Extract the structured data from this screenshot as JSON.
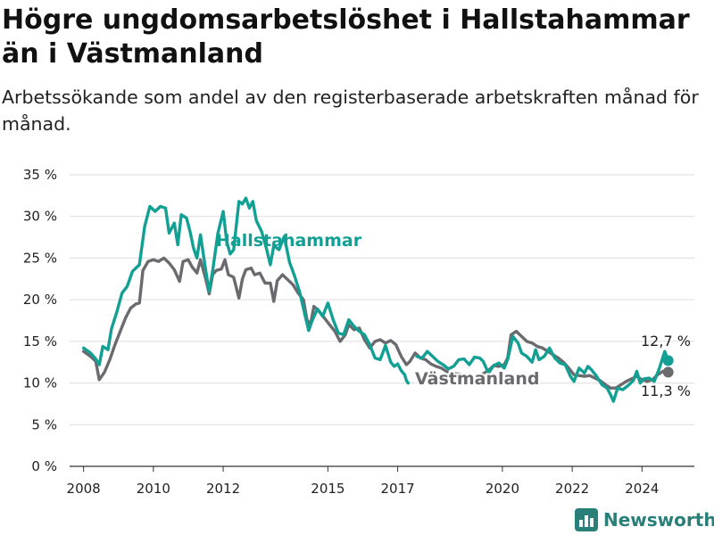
{
  "title": "Högre ungdomsarbetslöshet i Hallstahammar än i Västmanland",
  "subtitle": "Arbetssökande som andel av den registerbaserade arbetskraften månad för månad.",
  "brand": "Newsworthy",
  "colors": {
    "hallstahammar": "#12a094",
    "vastmanland": "#6b6b6f",
    "grid": "#dddddd",
    "text": "#222222"
  },
  "chart_data": {
    "type": "line",
    "ylim": [
      0,
      35
    ],
    "y_ticks": [
      0,
      5,
      10,
      15,
      20,
      25,
      30,
      35
    ],
    "y_tick_labels": [
      "0 %",
      "5 %",
      "10 %",
      "15 %",
      "20 %",
      "25 %",
      "30 %",
      "35 %"
    ],
    "x_tick_values": [
      2008,
      2010,
      2012,
      2015,
      2017,
      2020,
      2022,
      2024
    ],
    "x_tick_labels": [
      "2008",
      "2010",
      "2012",
      "2015",
      "2017",
      "2020",
      "2022",
      "2024"
    ],
    "grid": true,
    "series": [
      {
        "name": "Hallstahammar",
        "color_key": "hallstahammar",
        "end_label": "12,7 %",
        "points": [
          [
            2008.0,
            14.2
          ],
          [
            2008.2,
            13.6
          ],
          [
            2008.35,
            12.9
          ],
          [
            2008.45,
            12.2
          ],
          [
            2008.55,
            14.4
          ],
          [
            2008.7,
            14.0
          ],
          [
            2008.8,
            16.5
          ],
          [
            2008.95,
            18.5
          ],
          [
            2009.1,
            20.8
          ],
          [
            2009.25,
            21.6
          ],
          [
            2009.4,
            23.4
          ],
          [
            2009.6,
            24.2
          ],
          [
            2009.75,
            28.8
          ],
          [
            2009.9,
            31.2
          ],
          [
            2010.05,
            30.6
          ],
          [
            2010.2,
            31.2
          ],
          [
            2010.35,
            31.0
          ],
          [
            2010.45,
            28.0
          ],
          [
            2010.6,
            29.2
          ],
          [
            2010.7,
            26.6
          ],
          [
            2010.8,
            30.2
          ],
          [
            2010.95,
            29.8
          ],
          [
            2011.05,
            28.2
          ],
          [
            2011.15,
            26.2
          ],
          [
            2011.25,
            25.0
          ],
          [
            2011.35,
            27.8
          ],
          [
            2011.5,
            23.5
          ],
          [
            2011.6,
            21.0
          ],
          [
            2011.7,
            23.5
          ],
          [
            2011.85,
            28.0
          ],
          [
            2012.0,
            30.6
          ],
          [
            2012.1,
            27.0
          ],
          [
            2012.2,
            25.5
          ],
          [
            2012.3,
            26.0
          ],
          [
            2012.45,
            31.8
          ],
          [
            2012.55,
            31.5
          ],
          [
            2012.65,
            32.2
          ],
          [
            2012.75,
            31.0
          ],
          [
            2012.85,
            31.8
          ],
          [
            2012.95,
            29.5
          ],
          [
            2013.1,
            28.2
          ],
          [
            2013.25,
            26.0
          ],
          [
            2013.35,
            24.2
          ],
          [
            2013.45,
            26.5
          ],
          [
            2013.6,
            26.0
          ],
          [
            2013.75,
            27.6
          ],
          [
            2013.9,
            24.5
          ],
          [
            2014.05,
            22.8
          ],
          [
            2014.2,
            20.8
          ],
          [
            2014.35,
            18.0
          ],
          [
            2014.45,
            16.3
          ],
          [
            2014.55,
            17.5
          ],
          [
            2014.7,
            18.9
          ],
          [
            2014.85,
            18.0
          ],
          [
            2015.0,
            19.6
          ],
          [
            2015.15,
            17.6
          ],
          [
            2015.3,
            16.0
          ],
          [
            2015.45,
            15.8
          ],
          [
            2015.6,
            17.6
          ],
          [
            2015.75,
            16.8
          ],
          [
            2015.9,
            16.2
          ],
          [
            2016.05,
            15.8
          ],
          [
            2016.2,
            14.6
          ],
          [
            2016.35,
            13.0
          ],
          [
            2016.5,
            12.8
          ],
          [
            2016.65,
            14.5
          ],
          [
            2016.8,
            12.5
          ],
          [
            2016.9,
            12.0
          ],
          [
            2017.0,
            12.3
          ],
          [
            2017.1,
            11.5
          ],
          [
            2017.2,
            11.0
          ],
          [
            2017.25,
            10.3
          ],
          [
            2017.3,
            10.0
          ]
        ],
        "points_segment2": [
          [
            2017.55,
            13.2
          ],
          [
            2017.7,
            13.0
          ],
          [
            2017.85,
            13.8
          ],
          [
            2018.0,
            13.2
          ],
          [
            2018.15,
            12.6
          ],
          [
            2018.3,
            12.2
          ],
          [
            2018.45,
            11.7
          ],
          [
            2018.6,
            12.0
          ],
          [
            2018.75,
            12.8
          ],
          [
            2018.9,
            12.9
          ],
          [
            2019.05,
            12.2
          ],
          [
            2019.2,
            13.1
          ],
          [
            2019.35,
            13.0
          ],
          [
            2019.45,
            12.6
          ],
          [
            2019.6,
            11.2
          ],
          [
            2019.75,
            12.1
          ],
          [
            2019.9,
            12.4
          ],
          [
            2020.05,
            11.8
          ],
          [
            2020.15,
            12.8
          ],
          [
            2020.3,
            15.6
          ],
          [
            2020.45,
            14.8
          ],
          [
            2020.55,
            13.6
          ],
          [
            2020.7,
            13.2
          ],
          [
            2020.85,
            12.5
          ],
          [
            2020.95,
            14.0
          ],
          [
            2021.05,
            12.8
          ],
          [
            2021.2,
            13.2
          ],
          [
            2021.35,
            14.2
          ],
          [
            2021.5,
            13.0
          ],
          [
            2021.65,
            12.4
          ],
          [
            2021.8,
            12.2
          ],
          [
            2021.95,
            10.8
          ],
          [
            2022.05,
            10.2
          ],
          [
            2022.2,
            11.8
          ],
          [
            2022.35,
            11.2
          ],
          [
            2022.45,
            12.0
          ],
          [
            2022.55,
            11.6
          ],
          [
            2022.7,
            10.8
          ],
          [
            2022.85,
            9.8
          ],
          [
            2023.0,
            9.4
          ],
          [
            2023.1,
            8.6
          ],
          [
            2023.18,
            7.8
          ],
          [
            2023.3,
            9.4
          ],
          [
            2023.45,
            9.2
          ],
          [
            2023.6,
            9.7
          ],
          [
            2023.75,
            10.3
          ],
          [
            2023.85,
            11.4
          ],
          [
            2023.95,
            10.0
          ],
          [
            2024.05,
            10.5
          ],
          [
            2024.2,
            10.6
          ],
          [
            2024.35,
            10.2
          ],
          [
            2024.5,
            11.8
          ],
          [
            2024.65,
            13.8
          ],
          [
            2024.75,
            12.7
          ]
        ]
      },
      {
        "name": "Västmanland",
        "color_key": "vastmanland",
        "end_label": "11,3 %",
        "points": [
          [
            2008.0,
            13.8
          ],
          [
            2008.2,
            13.2
          ],
          [
            2008.35,
            12.6
          ],
          [
            2008.45,
            10.4
          ],
          [
            2008.6,
            11.3
          ],
          [
            2008.75,
            12.8
          ],
          [
            2008.9,
            14.6
          ],
          [
            2009.05,
            16.2
          ],
          [
            2009.2,
            17.8
          ],
          [
            2009.35,
            19.0
          ],
          [
            2009.5,
            19.5
          ],
          [
            2009.6,
            19.6
          ],
          [
            2009.7,
            23.5
          ],
          [
            2009.85,
            24.6
          ],
          [
            2010.0,
            24.8
          ],
          [
            2010.15,
            24.6
          ],
          [
            2010.3,
            25.0
          ],
          [
            2010.45,
            24.4
          ],
          [
            2010.6,
            23.6
          ],
          [
            2010.75,
            22.2
          ],
          [
            2010.85,
            24.6
          ],
          [
            2011.0,
            24.8
          ],
          [
            2011.1,
            24.0
          ],
          [
            2011.25,
            23.2
          ],
          [
            2011.35,
            24.8
          ],
          [
            2011.5,
            22.5
          ],
          [
            2011.6,
            20.7
          ],
          [
            2011.7,
            23.0
          ],
          [
            2011.8,
            23.5
          ],
          [
            2011.95,
            23.7
          ],
          [
            2012.05,
            24.8
          ],
          [
            2012.15,
            23.0
          ],
          [
            2012.3,
            22.7
          ],
          [
            2012.45,
            20.2
          ],
          [
            2012.55,
            22.5
          ],
          [
            2012.65,
            23.6
          ],
          [
            2012.8,
            23.8
          ],
          [
            2012.9,
            23.0
          ],
          [
            2013.05,
            23.2
          ],
          [
            2013.2,
            22.0
          ],
          [
            2013.35,
            22.0
          ],
          [
            2013.45,
            19.8
          ],
          [
            2013.55,
            22.3
          ],
          [
            2013.7,
            23.0
          ],
          [
            2013.85,
            22.4
          ],
          [
            2014.0,
            21.8
          ],
          [
            2014.15,
            20.8
          ],
          [
            2014.3,
            20.0
          ],
          [
            2014.4,
            17.6
          ],
          [
            2014.5,
            17.0
          ],
          [
            2014.6,
            19.2
          ],
          [
            2014.75,
            18.6
          ],
          [
            2014.9,
            17.8
          ],
          [
            2015.05,
            17.0
          ],
          [
            2015.2,
            16.2
          ],
          [
            2015.35,
            15.0
          ],
          [
            2015.5,
            15.8
          ],
          [
            2015.6,
            17.0
          ],
          [
            2015.75,
            16.4
          ],
          [
            2015.9,
            16.6
          ],
          [
            2016.05,
            15.2
          ],
          [
            2016.2,
            14.2
          ],
          [
            2016.35,
            15.0
          ],
          [
            2016.5,
            15.2
          ],
          [
            2016.65,
            14.8
          ],
          [
            2016.8,
            15.1
          ],
          [
            2016.95,
            14.6
          ],
          [
            2017.1,
            13.2
          ],
          [
            2017.25,
            12.2
          ],
          [
            2017.35,
            12.6
          ],
          [
            2017.5,
            13.6
          ],
          [
            2017.65,
            13.0
          ],
          [
            2017.8,
            12.8
          ],
          [
            2017.95,
            12.3
          ],
          [
            2018.1,
            12.0
          ],
          [
            2018.25,
            11.8
          ],
          [
            2018.4,
            11.4
          ],
          [
            2018.55,
            11.2
          ],
          [
            2018.7,
            11.1
          ],
          [
            2018.85,
            11.0
          ],
          [
            2019.0,
            10.9
          ],
          [
            2019.15,
            10.8
          ]
        ],
        "points_segment2": [
          [
            2019.4,
            11.0
          ],
          [
            2019.6,
            11.5
          ],
          [
            2019.75,
            12.1
          ],
          [
            2019.9,
            12.0
          ],
          [
            2020.05,
            12.2
          ],
          [
            2020.15,
            13.0
          ],
          [
            2020.25,
            15.8
          ],
          [
            2020.4,
            16.2
          ],
          [
            2020.55,
            15.6
          ],
          [
            2020.7,
            15.0
          ],
          [
            2020.85,
            14.8
          ],
          [
            2021.0,
            14.4
          ],
          [
            2021.15,
            14.2
          ],
          [
            2021.3,
            13.8
          ],
          [
            2021.45,
            13.4
          ],
          [
            2021.6,
            13.0
          ],
          [
            2021.75,
            12.5
          ],
          [
            2021.9,
            11.8
          ],
          [
            2022.05,
            11.0
          ],
          [
            2022.2,
            10.9
          ],
          [
            2022.35,
            10.8
          ],
          [
            2022.5,
            10.9
          ],
          [
            2022.65,
            10.6
          ],
          [
            2022.8,
            10.3
          ],
          [
            2022.95,
            9.8
          ],
          [
            2023.1,
            9.4
          ],
          [
            2023.25,
            9.4
          ],
          [
            2023.4,
            9.8
          ],
          [
            2023.55,
            10.2
          ],
          [
            2023.7,
            10.5
          ],
          [
            2023.85,
            10.8
          ],
          [
            2024.0,
            10.4
          ],
          [
            2024.15,
            10.2
          ],
          [
            2024.3,
            10.4
          ],
          [
            2024.45,
            11.0
          ],
          [
            2024.6,
            11.4
          ],
          [
            2024.75,
            11.3
          ]
        ]
      }
    ]
  }
}
